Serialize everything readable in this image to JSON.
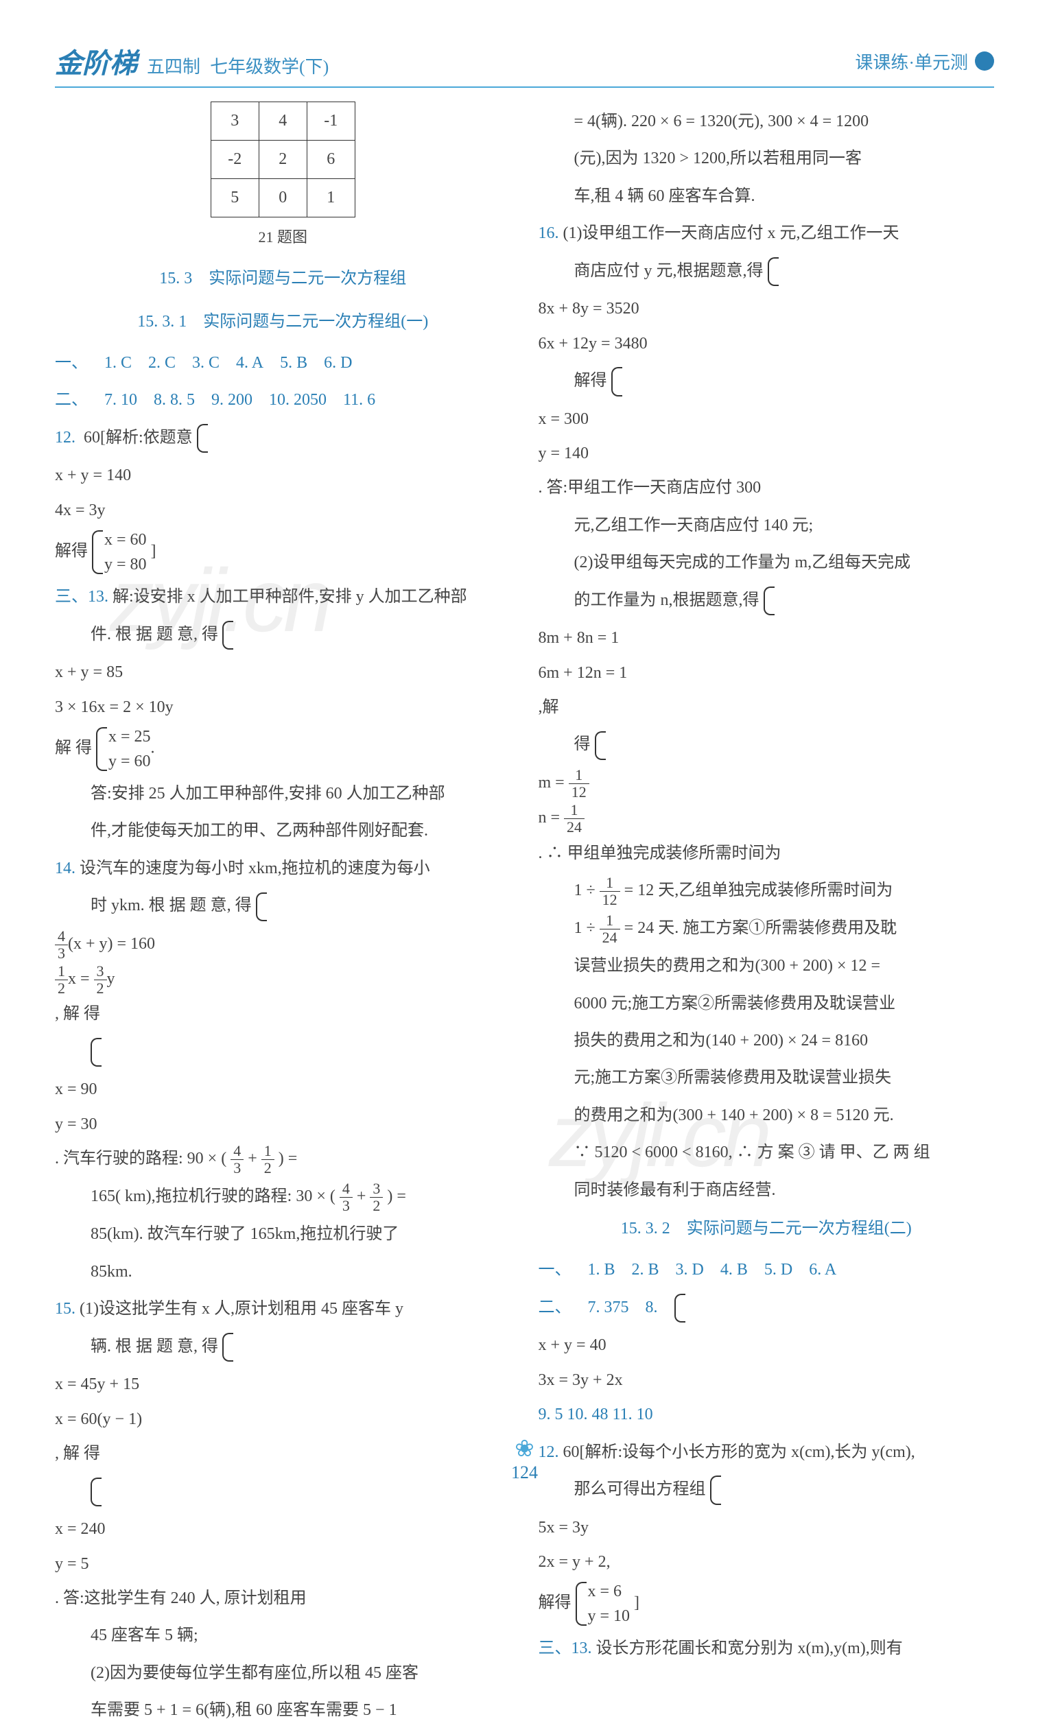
{
  "header": {
    "logo": "金阶梯",
    "edition": "五四制",
    "subject": "七年级数学(下)",
    "right": "课课练·单元测"
  },
  "table21": {
    "rows": [
      [
        "3",
        "4",
        "-1"
      ],
      [
        "-2",
        "2",
        "6"
      ],
      [
        "5",
        "0",
        "1"
      ]
    ],
    "caption": "21 题图"
  },
  "sec_a": {
    "title": "15. 3　实际问题与二元一次方程组",
    "sub": "15. 3. 1　实际问题与二元一次方程组(一)"
  },
  "ansA1": {
    "lead": "一、",
    "a1": "1. C",
    "a2": "2. C",
    "a3": "3. C",
    "a4": "4. A",
    "a5": "5. B",
    "a6": "6. D"
  },
  "ansA2": {
    "lead": "二、",
    "a7": "7. 10",
    "a8": "8. 8. 5",
    "a9": "9. 200",
    "a10": "10. 2050",
    "a11": "11. 6"
  },
  "q12": {
    "lead": "12.",
    "text": "60[解析:依题意",
    "eq1a": "x + y = 140",
    "eq1b": "4x = 3y",
    "mid": "解得",
    "eq2a": "x = 60",
    "eq2b": "y = 80",
    "tail": " ]"
  },
  "q13": {
    "lead": "三、13.",
    "l1": "解:设安排 x 人加工甲种部件,安排 y 人加工乙种部",
    "l2": "件. 根 据 题 意, 得",
    "eq1a": "x + y = 85",
    "eq1b": "3 × 16x = 2 × 10y",
    "mid": "解 得",
    "eq2a": "x = 25",
    "eq2b": "y = 60",
    "l3": "答:安排 25 人加工甲种部件,安排 60 人加工乙种部",
    "l4": "件,才能使每天加工的甲、乙两种部件刚好配套."
  },
  "q14": {
    "lead": "14.",
    "l1": "设汽车的速度为每小时 xkm,拖拉机的速度为每小",
    "l2": "时 ykm. 根 据 题 意, 得",
    "eq1a_num": "4",
    "eq1a_den": "3",
    "eq1a_rest": "(x + y) = 160",
    "eq1b_l": "1",
    "eq1b_lden": "2",
    "eq1b_mid": "x = ",
    "eq1b_r": "3",
    "eq1b_rden": "2",
    "eq1b_tail": "y",
    "mid": ", 解 得",
    "eq2a": "x = 90",
    "eq2b": "y = 30",
    "l3a": ". 汽车行驶的路程: 90 × (",
    "l3f1n": "4",
    "l3f1d": "3",
    "l3plus": " + ",
    "l3f2n": "1",
    "l3f2d": "2",
    "l3b": ") =",
    "l4": "165( km),拖拉机行驶的路程: 30 × (",
    "l4f1n": "4",
    "l4f1d": "3",
    "l4plus": " + ",
    "l4f2n": "3",
    "l4f2d": "2",
    "l4b": ") =",
    "l5": "85(km). 故汽车行驶了 165km,拖拉机行驶了",
    "l6": "85km."
  },
  "q15": {
    "lead": "15.",
    "l1": "(1)设这批学生有 x 人,原计划租用 45 座客车 y",
    "l2": "辆. 根 据 题 意, 得",
    "eq1a": "x = 45y + 15",
    "eq1b": "x = 60(y − 1)",
    "mid": ", 解 得",
    "eq2a": "x = 240",
    "eq2b": "y = 5",
    "l3": ". 答:这批学生有 240 人, 原计划租用",
    "l4": "45 座客车 5 辆;",
    "l5": "(2)因为要使每位学生都有座位,所以租 45 座客",
    "l6": "车需要 5 + 1 = 6(辆),租 60 座客车需要 5 − 1"
  },
  "r1": {
    "l1": "= 4(辆). 220 × 6 = 1320(元), 300 × 4 = 1200",
    "l2": "(元),因为 1320 > 1200,所以若租用同一客",
    "l3": "车,租 4 辆 60 座客车合算."
  },
  "q16": {
    "lead": "16.",
    "l1": "(1)设甲组工作一天商店应付 x 元,乙组工作一天",
    "l2": "商店应付 y 元,根据题意,得",
    "eq1a": "8x + 8y = 3520",
    "eq1b": "6x + 12y = 3480",
    "l3": "解得",
    "eq2a": "x = 300",
    "eq2b": "y = 140",
    "l3b": ". 答:甲组工作一天商店应付 300",
    "l4": "元,乙组工作一天商店应付 140 元;",
    "l5": "(2)设甲组每天完成的工作量为 m,乙组每天完成",
    "l6": "的工作量为 n,根据题意,得",
    "eq3a": "8m + 8n = 1",
    "eq3b": "6m + 12n = 1",
    "l6b": ",解",
    "l7": "得",
    "eq4a_l": "m = ",
    "eq4a_n": "1",
    "eq4a_d": "12",
    "eq4b_l": "n = ",
    "eq4b_n": "1",
    "eq4b_d": "24",
    "l7b": ". ∴ 甲组单独完成装修所需时间为",
    "l8a": "1 ÷ ",
    "l8f_n": "1",
    "l8f_d": "12",
    "l8b": " = 12 天,乙组单独完成装修所需时间为",
    "l9a": "1 ÷ ",
    "l9f_n": "1",
    "l9f_d": "24",
    "l9b": " = 24 天. 施工方案①所需装修费用及耽",
    "l10": "误营业损失的费用之和为(300 + 200) × 12 =",
    "l11": "6000 元;施工方案②所需装修费用及耽误营业",
    "l12": "损失的费用之和为(140 + 200) × 24 = 8160",
    "l13": "元;施工方案③所需装修费用及耽误营业损失",
    "l14": "的费用之和为(300 + 140 + 200) × 8 = 5120 元.",
    "l15": "∵ 5120 < 6000 < 8160, ∴ 方 案 ③ 请 甲、乙 两 组",
    "l16": "同时装修最有利于商店经营."
  },
  "sec_b": {
    "sub": "15. 3. 2　实际问题与二元一次方程组(二)"
  },
  "ansB1": {
    "lead": "一、",
    "a1": "1. B",
    "a2": "2. B",
    "a3": "3. D",
    "a4": "4. B",
    "a5": "5. D",
    "a6": "6. A"
  },
  "ansB2": {
    "lead": "二、",
    "a7": "7. 375",
    "a8": "8.",
    "eq1a": "x + y = 40",
    "eq1b": "3x = 3y + 2x",
    "a9": "9. 5",
    "a10": "10. 48",
    "a11": "11. 10"
  },
  "q12b": {
    "lead": "12.",
    "l1": "60[解析:设每个小长方形的宽为 x(cm),长为 y(cm),",
    "l2": "那么可得出方程组",
    "eq1a": "5x = 3y",
    "eq1b": "2x = y + 2,",
    "mid": "解得",
    "eq2a": "x = 6",
    "eq2b": "y = 10",
    "tail": " ]"
  },
  "q13b": {
    "lead": "三、13.",
    "l1": "设长方形花圃长和宽分别为 x(m),y(m),则有"
  },
  "watermark": "zyji.cn",
  "page": "124"
}
